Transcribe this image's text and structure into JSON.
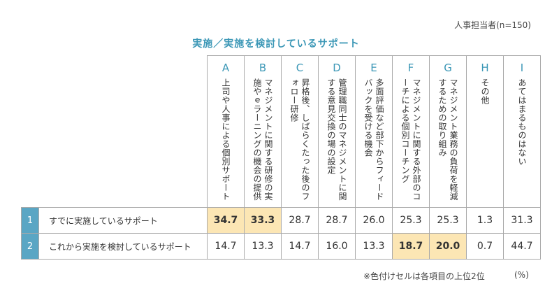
{
  "header": {
    "note": "人事担当者(n=150)",
    "title": "実施／実施を検討しているサポート"
  },
  "colors": {
    "accent": "#3b97b6",
    "index_bg": "#5aa6c4",
    "highlight": "#fce6b4"
  },
  "chart_data": {
    "type": "table",
    "title": "実施／実施を検討しているサポート",
    "columns": [
      {
        "letter": "A",
        "label": "上司や人事による個別サポート"
      },
      {
        "letter": "B",
        "label": "マネジメントに関する研修の実施やｅラーニングの機会の提供"
      },
      {
        "letter": "C",
        "label": "昇格後、しばらくたった後のフォロー研修"
      },
      {
        "letter": "D",
        "label": "管理職同士のマネジメントに関する意見交換の場の設定"
      },
      {
        "letter": "E",
        "label": "多面評価など部下からフィードバックを受ける機会"
      },
      {
        "letter": "F",
        "label": "マネジメントに関する外部のコーチによる個別コーチング"
      },
      {
        "letter": "G",
        "label": "マネジメント業務の負荷を軽減するための取り組み"
      },
      {
        "letter": "H",
        "label": "その他"
      },
      {
        "letter": "I",
        "label": "あてはまるものはない"
      }
    ],
    "rows": [
      {
        "index": "1",
        "label": "すでに実施しているサポート",
        "values": [
          "34.7",
          "33.3",
          "28.7",
          "28.7",
          "26.0",
          "25.3",
          "25.3",
          "1.3",
          "31.3"
        ],
        "highlight": [
          true,
          true,
          false,
          false,
          false,
          false,
          false,
          false,
          false
        ]
      },
      {
        "index": "2",
        "label": "これから実施を検討しているサポート",
        "values": [
          "14.7",
          "13.3",
          "14.7",
          "16.0",
          "13.3",
          "18.7",
          "20.0",
          "0.7",
          "44.7"
        ],
        "highlight": [
          false,
          false,
          false,
          false,
          false,
          true,
          true,
          false,
          false
        ]
      }
    ]
  },
  "footer": {
    "note": "※色付けセルは各項目の上位2位",
    "unit": "(%)"
  }
}
